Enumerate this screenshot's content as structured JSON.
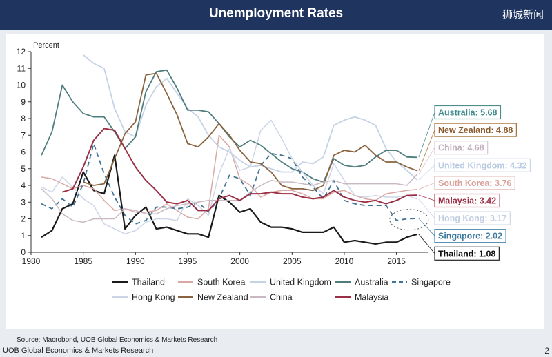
{
  "header": {
    "title": "Unemployment Rates",
    "watermark": "狮城新闻"
  },
  "source": "Source: Macrobond, UOB Global Economics & Markets Research",
  "footer": "UOB Global Economics & Markets Research",
  "page_number": "2",
  "chart_data": {
    "type": "line",
    "title": "Unemployment Rates",
    "ylabel": "Percent",
    "xlabel": "",
    "xlim": [
      1980,
      2018
    ],
    "ylim": [
      0,
      12
    ],
    "x_ticks": [
      1980,
      1985,
      1990,
      1995,
      2000,
      2005,
      2010,
      2015
    ],
    "y_ticks": [
      0,
      1,
      2,
      3,
      4,
      5,
      6,
      7,
      8,
      9,
      10,
      11,
      12
    ],
    "grid": false,
    "legend_position": "bottom",
    "x": [
      1981,
      1982,
      1983,
      1984,
      1985,
      1986,
      1987,
      1988,
      1989,
      1990,
      1991,
      1992,
      1993,
      1994,
      1995,
      1996,
      1997,
      1998,
      1999,
      2000,
      2001,
      2002,
      2003,
      2004,
      2005,
      2006,
      2007,
      2008,
      2009,
      2010,
      2011,
      2012,
      2013,
      2014,
      2015,
      2016,
      2017
    ],
    "series": [
      {
        "name": "Thailand",
        "color": "#1a1a1a",
        "dash": "",
        "width": 2.2,
        "values": [
          0.9,
          1.3,
          2.6,
          2.9,
          4.8,
          3.7,
          3.5,
          5.8,
          1.4,
          2.2,
          2.7,
          1.4,
          1.5,
          1.3,
          1.1,
          1.1,
          0.9,
          3.4,
          3.0,
          2.4,
          2.6,
          1.8,
          1.5,
          1.5,
          1.4,
          1.2,
          1.2,
          1.2,
          1.5,
          0.6,
          0.7,
          0.6,
          0.5,
          0.6,
          0.6,
          0.9,
          1.08
        ]
      },
      {
        "name": "South Korea",
        "color": "#d9a8a4",
        "dash": "",
        "width": 1.5,
        "values": [
          4.5,
          4.4,
          4.1,
          3.8,
          4.0,
          3.8,
          3.1,
          2.5,
          2.6,
          2.4,
          2.4,
          2.5,
          2.9,
          2.5,
          2.1,
          2.0,
          2.6,
          7.0,
          6.3,
          4.4,
          4.0,
          3.3,
          3.6,
          3.7,
          3.7,
          3.5,
          3.2,
          3.2,
          3.6,
          3.7,
          3.4,
          3.2,
          3.1,
          3.5,
          3.6,
          3.7,
          3.76
        ]
      },
      {
        "name": "United Kingdom",
        "color": "#c5d3e6",
        "dash": "",
        "width": 1.8,
        "values": [
          null,
          null,
          null,
          null,
          11.8,
          11.3,
          11.0,
          8.6,
          7.2,
          6.9,
          8.8,
          9.9,
          10.4,
          9.5,
          8.6,
          8.1,
          7.0,
          6.3,
          6.0,
          5.5,
          5.1,
          5.2,
          5.0,
          4.8,
          4.8,
          5.4,
          5.3,
          5.7,
          7.6,
          7.9,
          8.1,
          7.9,
          7.6,
          6.2,
          5.4,
          4.9,
          4.32
        ]
      },
      {
        "name": "Australia",
        "color": "#4f7d7e",
        "dash": "",
        "width": 1.8,
        "values": [
          5.8,
          7.2,
          10.0,
          9.0,
          8.3,
          8.1,
          8.1,
          7.2,
          6.2,
          6.9,
          9.6,
          10.8,
          10.9,
          9.8,
          8.5,
          8.5,
          8.4,
          7.7,
          6.9,
          6.3,
          6.7,
          6.4,
          5.9,
          5.4,
          5.0,
          4.8,
          4.4,
          4.2,
          5.6,
          5.2,
          5.1,
          5.2,
          5.7,
          6.1,
          6.1,
          5.7,
          5.68
        ]
      },
      {
        "name": "Singapore",
        "color": "#3f7294",
        "dash": "7,5",
        "width": 1.8,
        "values": [
          2.9,
          2.6,
          3.2,
          2.7,
          4.1,
          6.5,
          4.7,
          3.3,
          2.2,
          1.7,
          1.9,
          2.7,
          2.7,
          2.6,
          2.7,
          3.0,
          2.4,
          3.2,
          4.6,
          4.4,
          3.4,
          5.2,
          5.9,
          5.8,
          5.6,
          4.5,
          3.9,
          3.2,
          4.3,
          3.1,
          2.9,
          2.8,
          2.8,
          2.8,
          1.9,
          2.0,
          2.02
        ]
      },
      {
        "name": "Hong Kong",
        "color": "#ccd6e6",
        "dash": "",
        "width": 1.5,
        "values": [
          3.9,
          3.6,
          4.5,
          3.9,
          3.2,
          2.8,
          1.7,
          1.4,
          1.1,
          1.3,
          1.8,
          2.0,
          2.0,
          1.9,
          3.2,
          2.8,
          2.2,
          4.7,
          6.2,
          4.9,
          5.1,
          7.3,
          7.9,
          6.8,
          5.6,
          4.8,
          4.0,
          3.5,
          5.3,
          4.3,
          3.4,
          3.3,
          3.4,
          3.3,
          3.3,
          3.4,
          3.17
        ]
      },
      {
        "name": "New Zealand",
        "color": "#8a6440",
        "dash": "",
        "width": 1.8,
        "values": [
          null,
          null,
          null,
          null,
          4.2,
          4.0,
          4.1,
          5.6,
          7.1,
          7.8,
          10.6,
          10.7,
          9.5,
          8.2,
          6.5,
          6.3,
          6.9,
          7.7,
          7.0,
          6.1,
          5.4,
          5.3,
          4.8,
          4.0,
          3.8,
          3.8,
          3.7,
          4.0,
          5.8,
          6.1,
          6.0,
          6.4,
          5.8,
          5.4,
          5.4,
          5.1,
          4.88
        ]
      },
      {
        "name": "China",
        "color": "#c9b9c4",
        "dash": "",
        "width": 1.5,
        "values": [
          3.8,
          3.2,
          2.3,
          1.9,
          1.8,
          2.0,
          2.0,
          2.0,
          2.6,
          2.5,
          2.3,
          2.3,
          2.6,
          2.8,
          2.9,
          3.0,
          3.1,
          3.1,
          3.1,
          3.1,
          3.6,
          4.0,
          4.3,
          4.2,
          4.2,
          4.1,
          4.0,
          4.2,
          4.3,
          4.1,
          4.1,
          4.1,
          4.1,
          4.1,
          4.1,
          4.0,
          4.68
        ]
      },
      {
        "name": "Malaysia",
        "color": "#9b2f45",
        "dash": "",
        "width": 2.0,
        "values": [
          null,
          null,
          3.6,
          3.8,
          5.1,
          6.7,
          7.4,
          7.3,
          6.2,
          5.1,
          4.3,
          3.7,
          3.0,
          2.9,
          3.1,
          2.5,
          2.5,
          3.2,
          3.4,
          3.1,
          3.5,
          3.5,
          3.6,
          3.5,
          3.5,
          3.3,
          3.2,
          3.3,
          3.7,
          3.3,
          3.1,
          3.0,
          3.1,
          2.9,
          3.1,
          3.4,
          3.42
        ]
      }
    ],
    "end_labels": [
      {
        "series": "Australia",
        "text": "Australia: 5.68",
        "color": "#4b8c8f",
        "fill": "#ffffff",
        "textcolor": "#3f8a8c"
      },
      {
        "series": "New Zealand",
        "text": "New Zealand: 4.88",
        "color": "#a8713a",
        "fill": "#ffffff",
        "textcolor": "#8a5a2b"
      },
      {
        "series": "China",
        "text": "China: 4.68",
        "color": "#d5c7d0",
        "fill": "#ffffff",
        "textcolor": "#c2b0bc"
      },
      {
        "series": "United Kingdom",
        "text": "United Kingdom: 4.32",
        "color": "#c7d6ea",
        "fill": "#ffffff",
        "textcolor": "#b9cbe2"
      },
      {
        "series": "South Korea",
        "text": "South Korea: 3.76",
        "color": "#e0b4b0",
        "fill": "#ffffff",
        "textcolor": "#d9a09a"
      },
      {
        "series": "Malaysia",
        "text": "Malaysia: 3.42",
        "color": "#b0425a",
        "fill": "#ffffff",
        "textcolor": "#9b2f45"
      },
      {
        "series": "Hong Kong",
        "text": "Hong Kong: 3.17",
        "color": "#ccd6e6",
        "fill": "#ffffff",
        "textcolor": "#c1cde0"
      },
      {
        "series": "Singapore",
        "text": "Singapore: 2.02",
        "color": "#4a86ab",
        "fill": "#ffffff",
        "textcolor": "#3d7aa0"
      },
      {
        "series": "Thailand",
        "text": "Thailand: 1.08",
        "color": "#222222",
        "fill": "#ffffff",
        "textcolor": "#111111"
      }
    ]
  }
}
